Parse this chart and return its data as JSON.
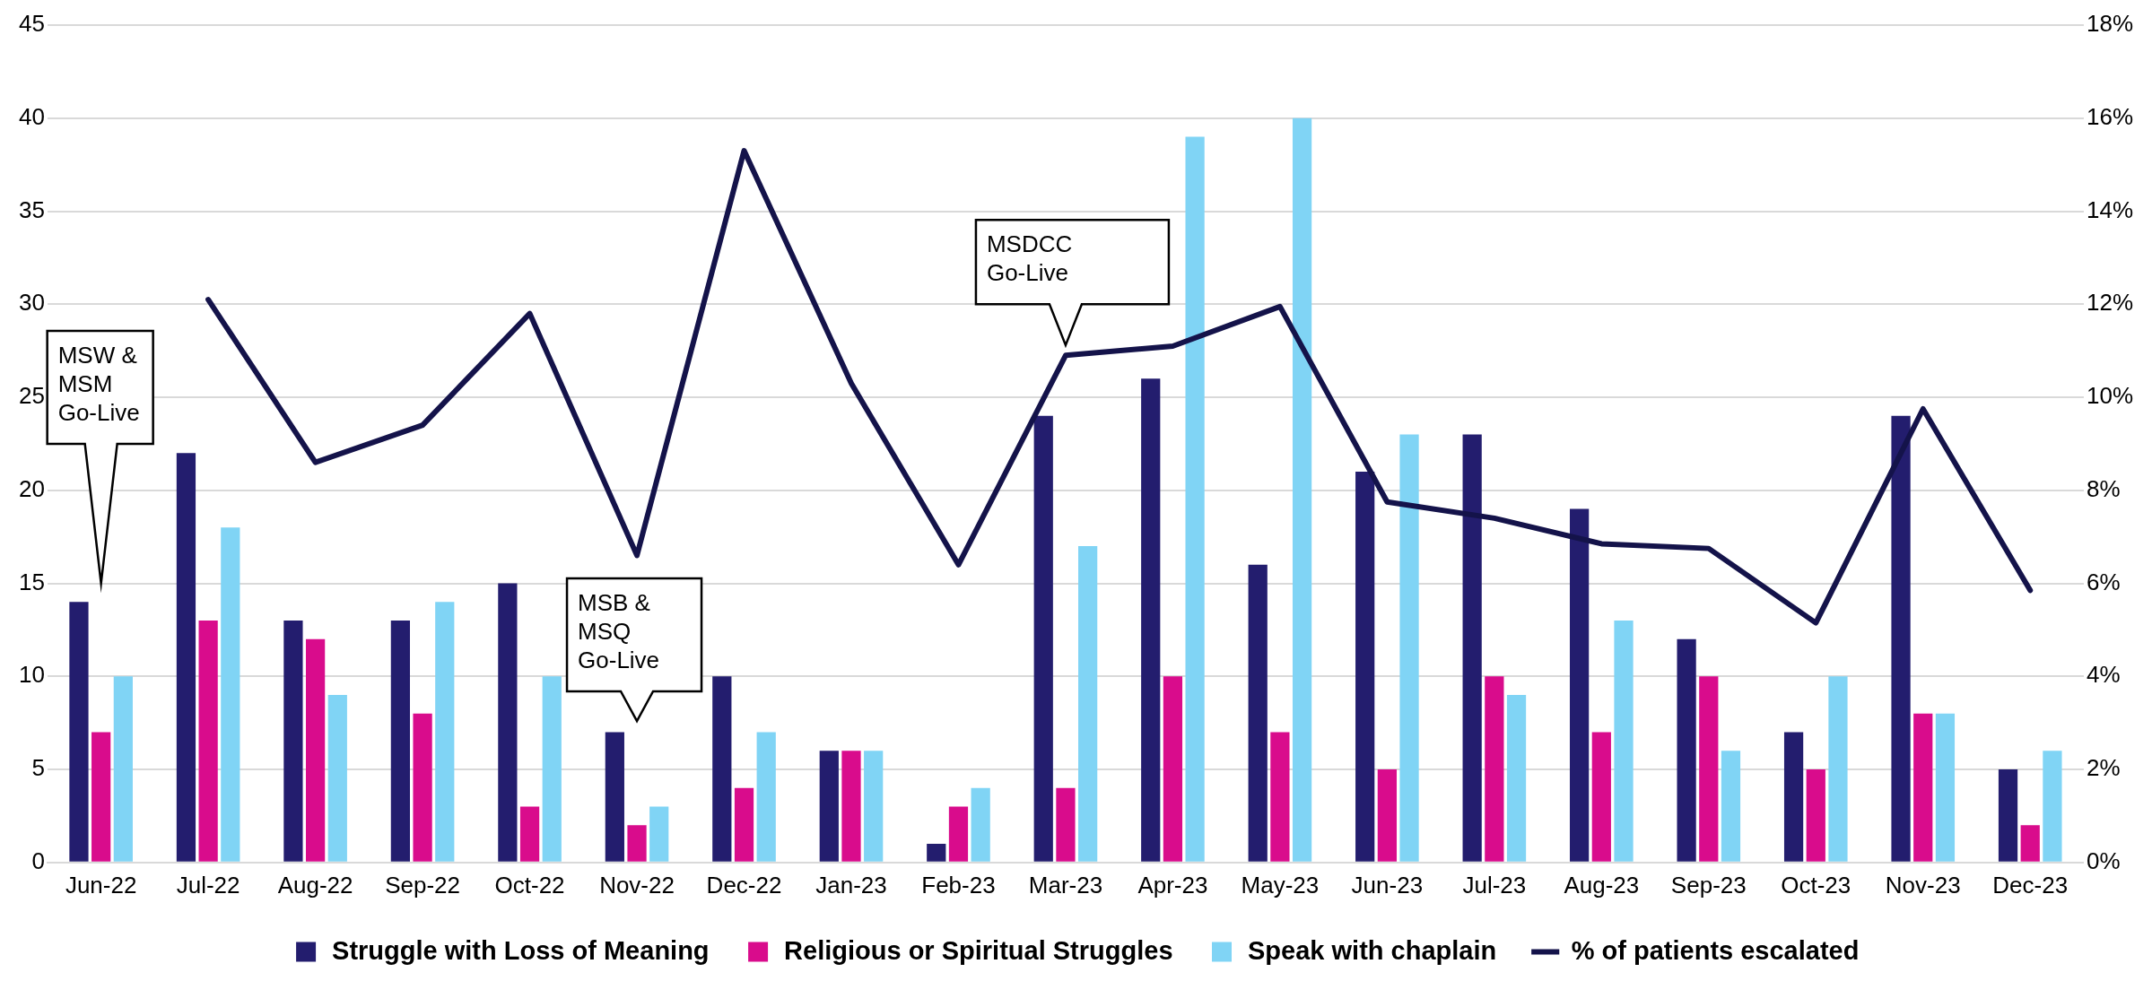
{
  "chart_data": {
    "type": "bar",
    "categories": [
      "Jun-22",
      "Jul-22",
      "Aug-22",
      "Sep-22",
      "Oct-22",
      "Nov-22",
      "Dec-22",
      "Jan-23",
      "Feb-23",
      "Mar-23",
      "Apr-23",
      "May-23",
      "Jun-23",
      "Jul-23",
      "Aug-23",
      "Sep-23",
      "Oct-23",
      "Nov-23",
      "Dec-23"
    ],
    "series": [
      {
        "name": "Struggle with Loss of Meaning",
        "color": "#231d6e",
        "values": [
          14,
          22,
          13,
          13,
          15,
          7,
          10,
          6,
          1,
          24,
          26,
          16,
          21,
          23,
          19,
          12,
          7,
          24,
          5
        ]
      },
      {
        "name": "Religious or Spiritual Struggles",
        "color": "#d90c8c",
        "values": [
          7,
          13,
          12,
          8,
          3,
          2,
          4,
          6,
          3,
          4,
          10,
          7,
          5,
          10,
          7,
          10,
          5,
          8,
          2
        ]
      },
      {
        "name": "Speak with chaplain",
        "color": "#80d4f5",
        "values": [
          10,
          18,
          9,
          14,
          10,
          3,
          7,
          6,
          4,
          17,
          39,
          40,
          23,
          9,
          13,
          6,
          10,
          8,
          6
        ]
      },
      {
        "name": "% of patients escalated",
        "type": "line",
        "axis": "y2",
        "color": "#14134a",
        "values": [
          null,
          12.1,
          8.6,
          9.4,
          11.8,
          6.6,
          15.3,
          10.3,
          6.4,
          10.9,
          11.1,
          11.95,
          7.75,
          7.4,
          6.85,
          6.75,
          5.15,
          9.75,
          5.85
        ]
      }
    ],
    "ylim": [
      0,
      45
    ],
    "yticks": [
      0,
      5,
      10,
      15,
      20,
      25,
      30,
      35,
      40,
      45
    ],
    "y2lim": [
      0,
      18
    ],
    "y2ticks": [
      {
        "value": 0,
        "label": "0%"
      },
      {
        "value": 2,
        "label": "2%"
      },
      {
        "value": 4,
        "label": "4%"
      },
      {
        "value": 6,
        "label": "6%"
      },
      {
        "value": 8,
        "label": "8%"
      },
      {
        "value": 10,
        "label": "10%"
      },
      {
        "value": 12,
        "label": "12%"
      },
      {
        "value": 14,
        "label": "14%"
      },
      {
        "value": 16,
        "label": "16%"
      },
      {
        "value": 18,
        "label": "18%"
      }
    ],
    "grid": "y",
    "legend": "bottom",
    "marker": "none",
    "annotations": [
      "MSW & MSM Go-Live",
      "MSB & MSQ Go-Live",
      "MSDCC Go-Live"
    ]
  }
}
